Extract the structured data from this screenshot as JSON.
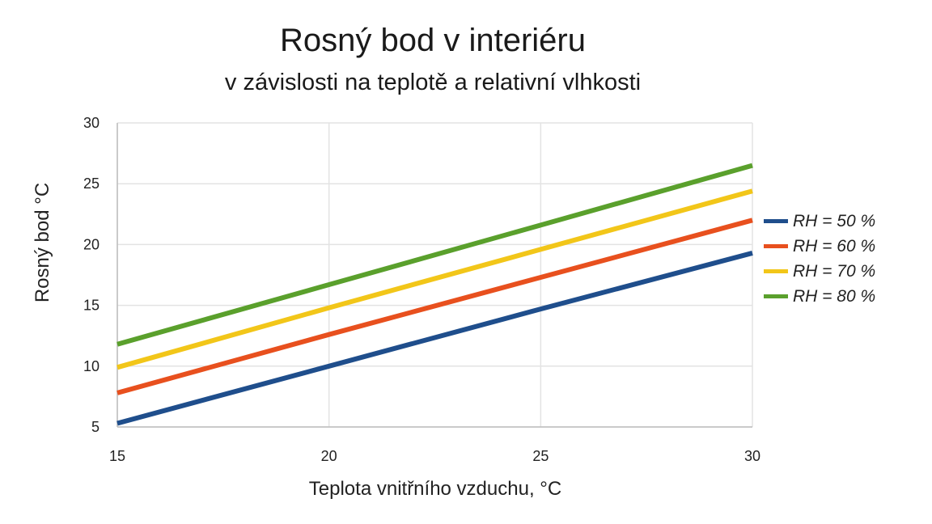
{
  "chart_data": {
    "type": "line",
    "title": "Rosný bod v interiéru",
    "subtitle": "v závislosti na teplotě a relativní vlhkosti",
    "xlabel": "Teplota vnitřního vzduchu, °C",
    "ylabel": "Rosný bod °C",
    "xlim": [
      15,
      30
    ],
    "ylim": [
      5,
      30
    ],
    "xticks": [
      "15",
      "20",
      "25",
      "30"
    ],
    "yticks": [
      "5",
      "10",
      "15",
      "20",
      "25",
      "30"
    ],
    "grid": true,
    "legend_position": "right",
    "series": [
      {
        "name": "RH = 50 %",
        "color": "#1f4e8c",
        "x": [
          15,
          20,
          25,
          30
        ],
        "y": [
          5.3,
          10.0,
          14.7,
          19.3
        ]
      },
      {
        "name": "RH = 60 %",
        "color": "#e8501e",
        "x": [
          15,
          20,
          25,
          30
        ],
        "y": [
          7.8,
          12.6,
          17.3,
          22.0
        ]
      },
      {
        "name": "RH = 70 %",
        "color": "#f2c619",
        "x": [
          15,
          20,
          25,
          30
        ],
        "y": [
          9.9,
          14.8,
          19.6,
          24.4
        ]
      },
      {
        "name": "RH = 80 %",
        "color": "#5aa02c",
        "x": [
          15,
          20,
          25,
          30
        ],
        "y": [
          11.8,
          16.7,
          21.6,
          26.5
        ]
      }
    ]
  }
}
